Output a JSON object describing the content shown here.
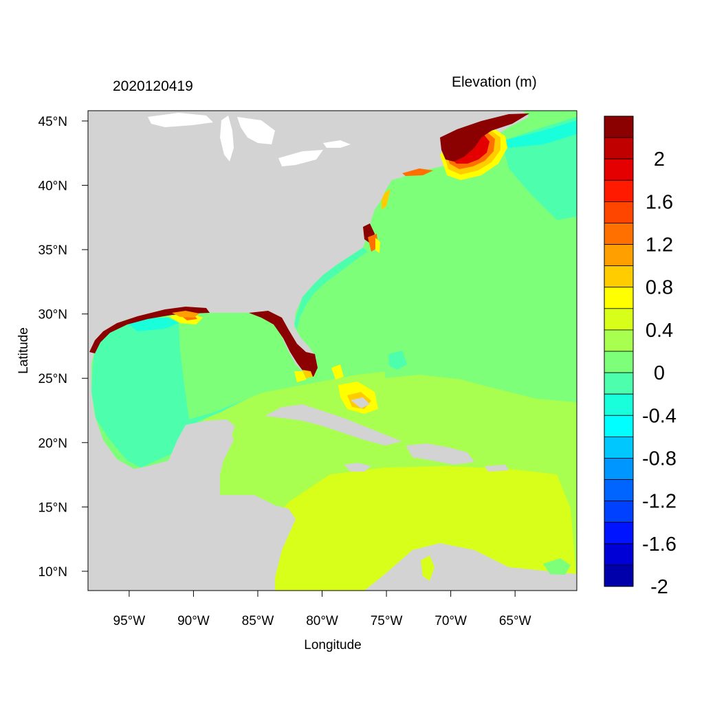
{
  "header": {
    "date_label": "2020120419",
    "variable_label": "Elevation (m)"
  },
  "axes": {
    "xlabel": "Longitude",
    "ylabel": "Latitude",
    "x_ticks": [
      "95°W",
      "90°W",
      "85°W",
      "80°W",
      "75°W",
      "70°W",
      "65°W"
    ],
    "x_tick_values": [
      -95,
      -90,
      -85,
      -80,
      -75,
      -70,
      -65
    ],
    "y_ticks": [
      "45°N",
      "40°N",
      "35°N",
      "30°N",
      "25°N",
      "20°N",
      "15°N",
      "10°N"
    ],
    "y_tick_values": [
      45,
      40,
      35,
      30,
      25,
      20,
      15,
      10
    ],
    "lon_range": [
      -98.2,
      -60.2
    ],
    "lat_range": [
      8.5,
      45.8
    ]
  },
  "colorbar": {
    "labels": [
      "2",
      "1.6",
      "1.2",
      "0.8",
      "0.4",
      "0",
      "-0.4",
      "-0.8",
      "-1.2",
      "-1.6",
      "-2"
    ],
    "levels_top_to_bottom": [
      2.2,
      2.0,
      1.8,
      1.6,
      1.4,
      1.2,
      1.0,
      0.8,
      0.6,
      0.4,
      0.2,
      0.0,
      -0.2,
      -0.4,
      -0.6,
      -0.8,
      -1.0,
      -1.2,
      -1.4,
      -1.6,
      -1.8,
      -2.0,
      -2.2
    ],
    "colors_top_to_bottom": [
      "#8b0000",
      "#c00000",
      "#e40000",
      "#ff1a00",
      "#ff4600",
      "#ff7000",
      "#ffa000",
      "#ffcc00",
      "#ffff00",
      "#d8ff1a",
      "#a8ff4f",
      "#7dff7a",
      "#4dffad",
      "#1affdb",
      "#00ffff",
      "#00c8ff",
      "#0096ff",
      "#0064ff",
      "#0040ff",
      "#0014ff",
      "#0000d6",
      "#0000aa"
    ]
  },
  "map_colors": {
    "land": "#d3d3d3",
    "lakes": "#ffffff",
    "open_ocean": "#7dff7a",
    "gulf_of_mexico": "#4dffad",
    "caribbean": "#a8ff4f",
    "southern_caribbean": "#d8ff1a",
    "surge_high": "#8b0000"
  }
}
